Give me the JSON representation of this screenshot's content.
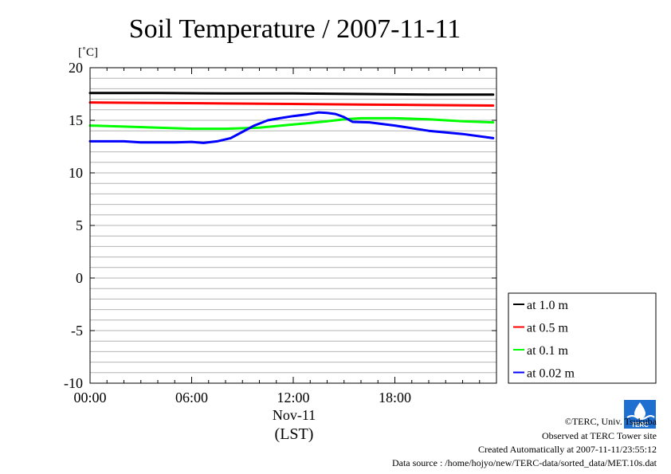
{
  "chart_data": {
    "type": "line",
    "title": "Soil Temperature / 2007-11-11",
    "unit_label": "[˚C]",
    "ylim": [
      -10,
      20
    ],
    "xlim": [
      0,
      24
    ],
    "y_ticks": [
      "20",
      "15",
      "10",
      "5",
      "0",
      "-5",
      "-10"
    ],
    "x_ticks": [
      {
        "label": "00:00",
        "hour": 0
      },
      {
        "label": "06:00",
        "hour": 6
      },
      {
        "label": "12:00",
        "hour": 12
      },
      {
        "label": "18:00",
        "hour": 18
      }
    ],
    "x_date_label": "Nov-11",
    "x_axis_label": "(LST)",
    "grid": true,
    "legend_position": "right",
    "series": [
      {
        "name": "at 1.0 m",
        "color": "#000000",
        "x": [
          0,
          4,
          8,
          12,
          16,
          20,
          23.8
        ],
        "y": [
          17.6,
          17.6,
          17.55,
          17.55,
          17.5,
          17.45,
          17.45
        ]
      },
      {
        "name": "at 0.5 m",
        "color": "#ff0000",
        "x": [
          0,
          4,
          8,
          12,
          16,
          20,
          23.8
        ],
        "y": [
          16.7,
          16.65,
          16.6,
          16.55,
          16.5,
          16.45,
          16.4
        ]
      },
      {
        "name": "at 0.1 m",
        "color": "#00ff00",
        "x": [
          0,
          2,
          4,
          6,
          8,
          10,
          12,
          14,
          15,
          16,
          18,
          20,
          22,
          23.8
        ],
        "y": [
          14.5,
          14.4,
          14.3,
          14.2,
          14.2,
          14.3,
          14.6,
          14.9,
          15.1,
          15.2,
          15.2,
          15.1,
          14.9,
          14.8
        ]
      },
      {
        "name": "at 0.02 m",
        "color": "#0000ff",
        "x": [
          0,
          2,
          3,
          5,
          6,
          6.7,
          7.5,
          8.3,
          9,
          9.7,
          10.5,
          11.2,
          12,
          12.8,
          13.5,
          14,
          14.5,
          15,
          15.5,
          16.5,
          18,
          20,
          22,
          23.8
        ],
        "y": [
          13.0,
          13.0,
          12.9,
          12.9,
          12.95,
          12.85,
          13.0,
          13.3,
          13.9,
          14.5,
          15.0,
          15.2,
          15.4,
          15.55,
          15.75,
          15.7,
          15.6,
          15.3,
          14.85,
          14.8,
          14.5,
          14.0,
          13.7,
          13.3
        ]
      }
    ]
  },
  "footer": {
    "copyright": "©TERC, Univ. Tsukuba",
    "observed": "Observed at TERC Tower site",
    "created": "Created Automatically at 2007-11-11/23:55:12",
    "source": "Data source : /home/hojyo/new/TERC-data/sorted_data/MET.10s.dat"
  },
  "logo": {
    "text": "TERC",
    "color": "#1f6fd0"
  }
}
